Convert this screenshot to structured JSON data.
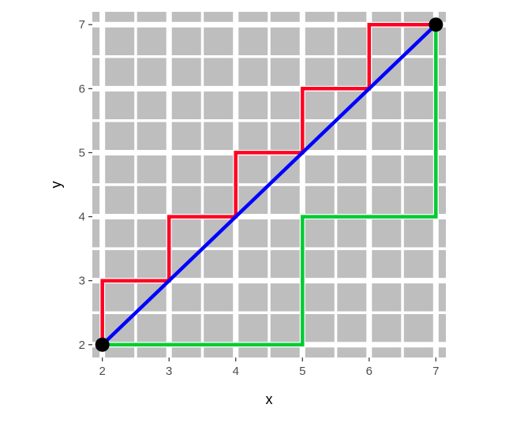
{
  "chart_data": {
    "type": "line",
    "title": "",
    "xlabel": "x",
    "ylabel": "y",
    "xlim": [
      1.85,
      7.15
    ],
    "ylim": [
      1.8,
      7.2
    ],
    "x_ticks": [
      2,
      3,
      4,
      5,
      6,
      7
    ],
    "y_ticks": [
      2,
      3,
      4,
      5,
      6,
      7
    ],
    "grid": true,
    "legend": "none",
    "colors": {
      "panel_background": "#bebebe",
      "grid": "#ffffff",
      "tick_text": "#4d4d4d",
      "axis_title": "#000000"
    },
    "series": [
      {
        "color": "#ff0022",
        "x": [
          2,
          2,
          3,
          3,
          4,
          4,
          5,
          5,
          6,
          6,
          7
        ],
        "y": [
          2,
          3,
          3,
          4,
          4,
          5,
          5,
          6,
          6,
          7,
          7
        ]
      },
      {
        "color": "#00cc33",
        "x": [
          2,
          5,
          5,
          7,
          7
        ],
        "y": [
          2,
          2,
          4,
          4,
          7
        ]
      },
      {
        "color": "#0000ff",
        "x": [
          2,
          7
        ],
        "y": [
          2,
          7
        ]
      }
    ],
    "points": {
      "color": "#000000",
      "x": [
        2,
        7
      ],
      "y": [
        2,
        7
      ]
    }
  }
}
